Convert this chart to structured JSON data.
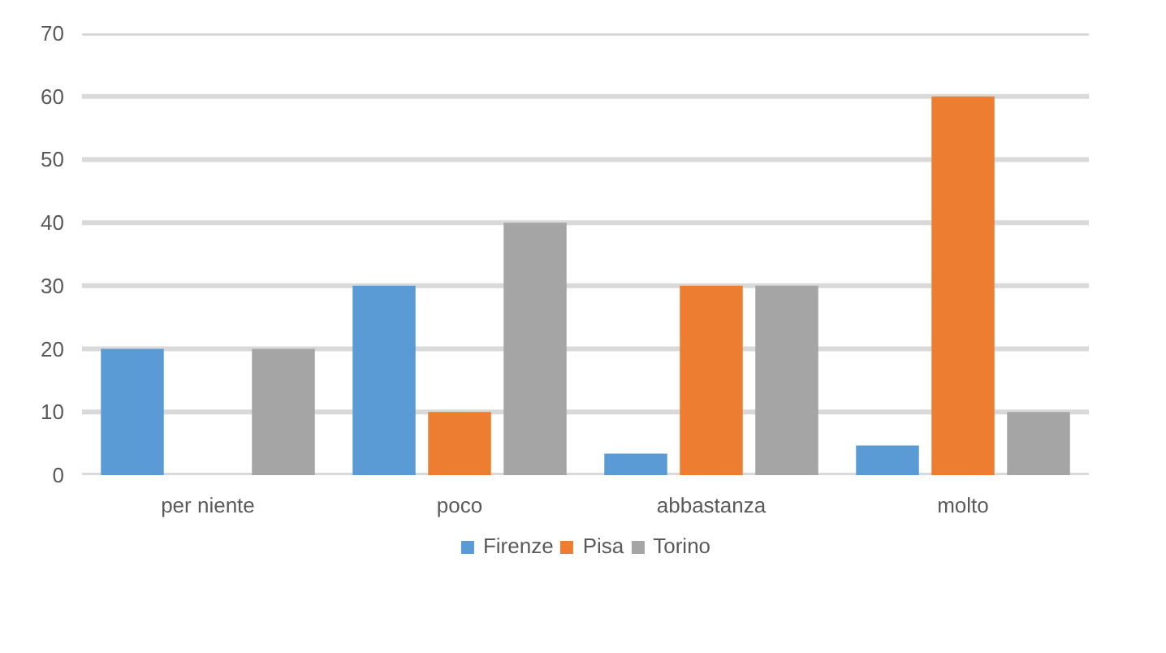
{
  "chart_data": {
    "type": "bar",
    "categories": [
      "per niente",
      "poco",
      "abbastanza",
      "molto"
    ],
    "series": [
      {
        "name": "Firenze",
        "color": "#5b9bd5",
        "values": [
          20,
          30,
          3.4,
          4.7
        ]
      },
      {
        "name": "Pisa",
        "color": "#ed7d31",
        "values": [
          0,
          10,
          30,
          60
        ]
      },
      {
        "name": "Torino",
        "color": "#a5a5a5",
        "values": [
          20,
          40,
          30,
          10
        ]
      }
    ],
    "ylim": [
      0,
      70
    ],
    "yticks": [
      0,
      10,
      20,
      30,
      40,
      50,
      60,
      70
    ],
    "grid": "y",
    "legend": "bottom"
  }
}
